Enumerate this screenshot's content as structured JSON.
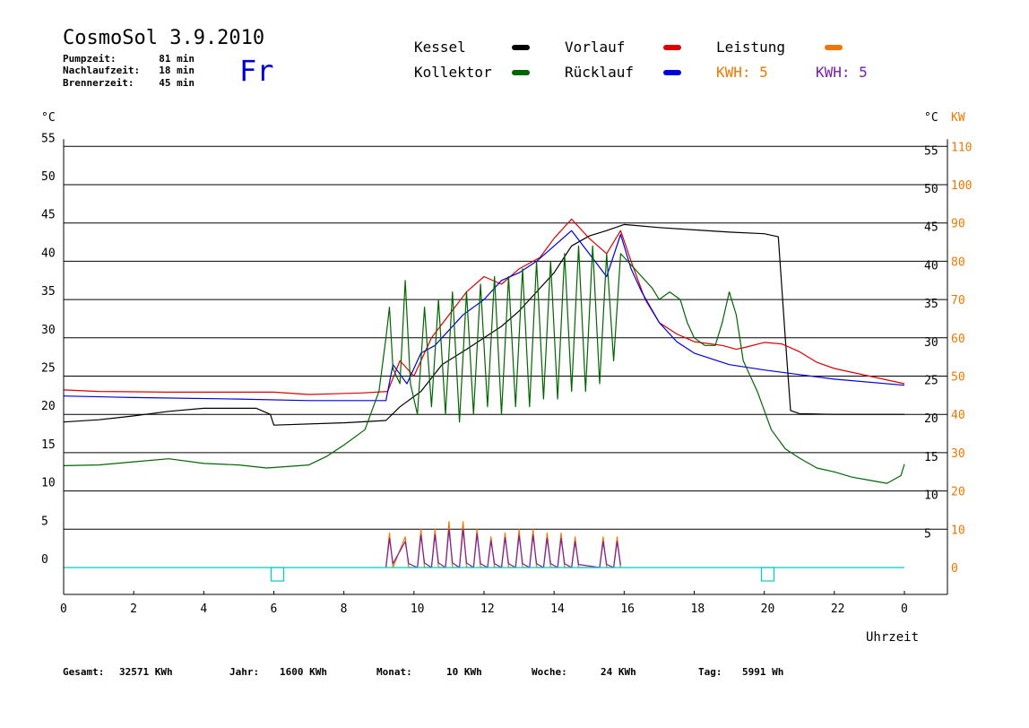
{
  "header": {
    "title": "CosmoSol 3.9.2010",
    "info": [
      {
        "label": "Pumpzeit:",
        "value": "81 min"
      },
      {
        "label": "Nachlaufzeit:",
        "value": "18 min"
      },
      {
        "label": "Brennerzeit:",
        "value": "45 min"
      }
    ],
    "day": "Fr"
  },
  "legend": [
    {
      "name": "Kessel",
      "color": "#000000"
    },
    {
      "name": "Vorlauf",
      "color": "#dd0000"
    },
    {
      "name": "Leistung",
      "color": "#ee7700"
    },
    {
      "name": "Kollektor",
      "color": "#006600"
    },
    {
      "name": "Rücklauf",
      "color": "#0000dd"
    }
  ],
  "kwh": [
    {
      "text": "KWH: 5",
      "color": "#ee7700"
    },
    {
      "text": "KWH: 5",
      "color": "#7a1fa2"
    }
  ],
  "footer": [
    {
      "label": "Gesamt:",
      "value": "32571 KWh"
    },
    {
      "label": "Jahr:",
      "value": "1600 KWh"
    },
    {
      "label": "Monat:",
      "value": "10 KWh"
    },
    {
      "label": "Woche:",
      "value": "24 KWh"
    },
    {
      "label": "Tag:",
      "value": "5991 Wh"
    }
  ],
  "chart_data": {
    "type": "line",
    "xlabel": "Uhrzeit",
    "ylabel_left": "°C",
    "ylabel_right": "°C",
    "ylabel_right2": "KW",
    "x_ticks": [
      "0",
      "2",
      "4",
      "6",
      "8",
      "10",
      "12",
      "14",
      "16",
      "18",
      "20",
      "22",
      "0"
    ],
    "y_ticks": [
      0,
      5,
      10,
      15,
      20,
      25,
      30,
      35,
      40,
      45,
      50,
      55
    ],
    "y2_ticks": [
      0,
      10,
      20,
      30,
      40,
      50,
      60,
      70,
      80,
      90,
      100,
      110
    ],
    "xlim": [
      0,
      24
    ],
    "ylim": [
      -3.7,
      55
    ],
    "grid": true,
    "series": [
      {
        "name": "Kessel",
        "color": "#000000",
        "points": [
          [
            0,
            19
          ],
          [
            1,
            19.3
          ],
          [
            2,
            19.8
          ],
          [
            3,
            20.4
          ],
          [
            4,
            20.8
          ],
          [
            5.5,
            20.8
          ],
          [
            5.9,
            20
          ],
          [
            6,
            18.6
          ],
          [
            8,
            18.9
          ],
          [
            9.2,
            19.2
          ],
          [
            9.6,
            21
          ],
          [
            10.2,
            23
          ],
          [
            10.8,
            26.5
          ],
          [
            11.5,
            28.5
          ],
          [
            12,
            30
          ],
          [
            12.5,
            31.5
          ],
          [
            13,
            33.5
          ],
          [
            13.5,
            36
          ],
          [
            14,
            38.5
          ],
          [
            14.5,
            42
          ],
          [
            15,
            43.3
          ],
          [
            15.5,
            44
          ],
          [
            16,
            44.8
          ],
          [
            17,
            44.4
          ],
          [
            18,
            44.1
          ],
          [
            19,
            43.8
          ],
          [
            20,
            43.6
          ],
          [
            20.4,
            43.2
          ],
          [
            20.6,
            30
          ],
          [
            20.75,
            20.5
          ],
          [
            21,
            20.1
          ],
          [
            22,
            20
          ],
          [
            24,
            20
          ]
        ]
      },
      {
        "name": "Vorlauf",
        "color": "#dd0000",
        "points": [
          [
            0,
            23.2
          ],
          [
            1,
            23
          ],
          [
            3,
            22.9
          ],
          [
            6,
            22.9
          ],
          [
            7,
            22.6
          ],
          [
            8.5,
            22.8
          ],
          [
            9.25,
            23
          ],
          [
            9.6,
            27
          ],
          [
            10,
            25
          ],
          [
            10.5,
            30
          ],
          [
            11,
            33
          ],
          [
            11.5,
            36
          ],
          [
            12,
            38
          ],
          [
            12.5,
            37
          ],
          [
            13,
            39
          ],
          [
            13.6,
            40.5
          ],
          [
            14,
            43
          ],
          [
            14.5,
            45.5
          ],
          [
            15,
            43
          ],
          [
            15.5,
            41
          ],
          [
            15.9,
            44
          ],
          [
            16.2,
            40
          ],
          [
            16.6,
            35
          ],
          [
            17,
            32
          ],
          [
            17.5,
            30.5
          ],
          [
            18,
            29.5
          ],
          [
            18.8,
            29
          ],
          [
            19.2,
            28.5
          ],
          [
            19.5,
            28.8
          ],
          [
            20,
            29.4
          ],
          [
            20.5,
            29.2
          ],
          [
            21,
            28.2
          ],
          [
            21.5,
            26.8
          ],
          [
            22,
            26
          ],
          [
            23,
            25
          ],
          [
            24,
            24
          ]
        ]
      },
      {
        "name": "Rücklauf",
        "color": "#0000dd",
        "points": [
          [
            0,
            22.4
          ],
          [
            2,
            22.2
          ],
          [
            5,
            22
          ],
          [
            7,
            21.8
          ],
          [
            9.2,
            21.8
          ],
          [
            9.4,
            26.5
          ],
          [
            9.8,
            24
          ],
          [
            10.2,
            28
          ],
          [
            10.6,
            29
          ],
          [
            11,
            31
          ],
          [
            11.4,
            33
          ],
          [
            12,
            35
          ],
          [
            12.5,
            37.5
          ],
          [
            13,
            38.5
          ],
          [
            13.5,
            40
          ],
          [
            14,
            42
          ],
          [
            14.5,
            44
          ],
          [
            15,
            41
          ],
          [
            15.5,
            38
          ],
          [
            15.9,
            43.5
          ],
          [
            16.2,
            39
          ],
          [
            16.5,
            36
          ],
          [
            17,
            32
          ],
          [
            17.5,
            29.5
          ],
          [
            18,
            28
          ],
          [
            19,
            26.5
          ],
          [
            20,
            25.8
          ],
          [
            21,
            25.2
          ],
          [
            22,
            24.6
          ],
          [
            24,
            23.8
          ]
        ]
      },
      {
        "name": "Kollektor",
        "color": "#006600",
        "points": [
          [
            0,
            13.3
          ],
          [
            1,
            13.4
          ],
          [
            2,
            13.8
          ],
          [
            3,
            14.2
          ],
          [
            4,
            13.6
          ],
          [
            5,
            13.4
          ],
          [
            5.8,
            13
          ],
          [
            7,
            13.4
          ],
          [
            7.5,
            14.5
          ],
          [
            8,
            16
          ],
          [
            8.6,
            18
          ],
          [
            9,
            23
          ],
          [
            9.2,
            30
          ],
          [
            9.3,
            34
          ],
          [
            9.4,
            26
          ],
          [
            9.6,
            24
          ],
          [
            9.75,
            37.5
          ],
          [
            9.9,
            24
          ],
          [
            10.1,
            20
          ],
          [
            10.3,
            34
          ],
          [
            10.5,
            21
          ],
          [
            10.7,
            35
          ],
          [
            10.9,
            20
          ],
          [
            11.1,
            36
          ],
          [
            11.3,
            19
          ],
          [
            11.5,
            36
          ],
          [
            11.7,
            20
          ],
          [
            11.9,
            37
          ],
          [
            12.1,
            21
          ],
          [
            12.3,
            38
          ],
          [
            12.5,
            20
          ],
          [
            12.7,
            38
          ],
          [
            12.9,
            21
          ],
          [
            13.1,
            39
          ],
          [
            13.3,
            21
          ],
          [
            13.5,
            40
          ],
          [
            13.7,
            22
          ],
          [
            13.9,
            40
          ],
          [
            14.1,
            22
          ],
          [
            14.3,
            41
          ],
          [
            14.5,
            23
          ],
          [
            14.7,
            42
          ],
          [
            14.9,
            23
          ],
          [
            15.1,
            42
          ],
          [
            15.3,
            24
          ],
          [
            15.5,
            41
          ],
          [
            15.7,
            27
          ],
          [
            15.9,
            41
          ],
          [
            16.1,
            40
          ],
          [
            16.3,
            39
          ],
          [
            16.5,
            38
          ],
          [
            16.8,
            36.5
          ],
          [
            17,
            35
          ],
          [
            17.3,
            36
          ],
          [
            17.6,
            35
          ],
          [
            17.8,
            32
          ],
          [
            18,
            30
          ],
          [
            18.3,
            29
          ],
          [
            18.6,
            29
          ],
          [
            18.8,
            32
          ],
          [
            19,
            36
          ],
          [
            19.2,
            33
          ],
          [
            19.4,
            27
          ],
          [
            19.8,
            23
          ],
          [
            20.2,
            18
          ],
          [
            20.6,
            15.5
          ],
          [
            21,
            14.3
          ],
          [
            21.5,
            13
          ],
          [
            22,
            12.5
          ],
          [
            22.5,
            11.8
          ],
          [
            23,
            11.4
          ],
          [
            23.5,
            11
          ],
          [
            23.9,
            12
          ],
          [
            24,
            13.5
          ]
        ]
      },
      {
        "name": "Leistung",
        "color": "#ee7700",
        "points": [
          [
            9.2,
            0
          ],
          [
            9.3,
            4.5
          ],
          [
            9.4,
            0
          ],
          [
            9.75,
            4
          ],
          [
            9.85,
            0
          ],
          [
            10.1,
            0
          ],
          [
            10.2,
            5
          ],
          [
            10.3,
            0
          ],
          [
            10.5,
            0
          ],
          [
            10.6,
            5
          ],
          [
            10.7,
            0
          ],
          [
            10.9,
            0
          ],
          [
            11,
            6
          ],
          [
            11.1,
            0
          ],
          [
            11.3,
            0
          ],
          [
            11.4,
            6
          ],
          [
            11.5,
            0
          ],
          [
            11.7,
            0
          ],
          [
            11.8,
            5
          ],
          [
            11.9,
            0
          ],
          [
            12.1,
            0
          ],
          [
            12.2,
            4
          ],
          [
            12.3,
            0
          ],
          [
            12.5,
            0
          ],
          [
            12.6,
            4.5
          ],
          [
            12.7,
            0
          ],
          [
            12.9,
            0
          ],
          [
            13,
            5
          ],
          [
            13.1,
            0
          ],
          [
            13.3,
            0
          ],
          [
            13.4,
            5
          ],
          [
            13.5,
            0
          ],
          [
            13.7,
            0
          ],
          [
            13.8,
            4.5
          ],
          [
            13.9,
            0
          ],
          [
            14.1,
            0
          ],
          [
            14.2,
            4.5
          ],
          [
            14.3,
            0
          ],
          [
            14.5,
            0
          ],
          [
            14.6,
            4
          ],
          [
            14.7,
            0
          ],
          [
            15.3,
            0
          ],
          [
            15.4,
            4
          ],
          [
            15.5,
            0
          ],
          [
            15.7,
            0
          ],
          [
            15.8,
            4
          ],
          [
            15.9,
            0
          ]
        ]
      },
      {
        "name": "Leistung (Linie 2)",
        "color": "#7a1fa2",
        "points": [
          [
            9.2,
            0
          ],
          [
            9.3,
            3.8
          ],
          [
            9.4,
            0.5
          ],
          [
            9.75,
            3.4
          ],
          [
            9.85,
            0.5
          ],
          [
            10.1,
            0
          ],
          [
            10.2,
            4.2
          ],
          [
            10.3,
            0.6
          ],
          [
            10.5,
            0
          ],
          [
            10.6,
            4.3
          ],
          [
            10.7,
            0.6
          ],
          [
            10.9,
            0
          ],
          [
            11,
            5
          ],
          [
            11.1,
            0.6
          ],
          [
            11.3,
            0
          ],
          [
            11.4,
            5
          ],
          [
            11.5,
            0.6
          ],
          [
            11.7,
            0
          ],
          [
            11.8,
            4.4
          ],
          [
            11.9,
            0.5
          ],
          [
            12.1,
            0
          ],
          [
            12.2,
            3.5
          ],
          [
            12.3,
            0.5
          ],
          [
            12.5,
            0
          ],
          [
            12.6,
            3.9
          ],
          [
            12.7,
            0.5
          ],
          [
            12.9,
            0
          ],
          [
            13,
            4.2
          ],
          [
            13.1,
            0.5
          ],
          [
            13.3,
            0
          ],
          [
            13.4,
            4.2
          ],
          [
            13.5,
            0.5
          ],
          [
            13.7,
            0
          ],
          [
            13.8,
            3.8
          ],
          [
            13.9,
            0.5
          ],
          [
            14.1,
            0
          ],
          [
            14.2,
            3.8
          ],
          [
            14.3,
            0.5
          ],
          [
            14.5,
            0
          ],
          [
            14.6,
            3.4
          ],
          [
            14.7,
            0.4
          ],
          [
            15.3,
            0
          ],
          [
            15.4,
            3.4
          ],
          [
            15.5,
            0.4
          ],
          [
            15.7,
            0
          ],
          [
            15.8,
            3.4
          ],
          [
            15.9,
            0.3
          ]
        ]
      },
      {
        "name": "Null",
        "color": "#00cccc",
        "points": [
          [
            0,
            0
          ],
          [
            24,
            0
          ]
        ]
      }
    ],
    "markers": [
      6.1,
      20.1
    ]
  }
}
